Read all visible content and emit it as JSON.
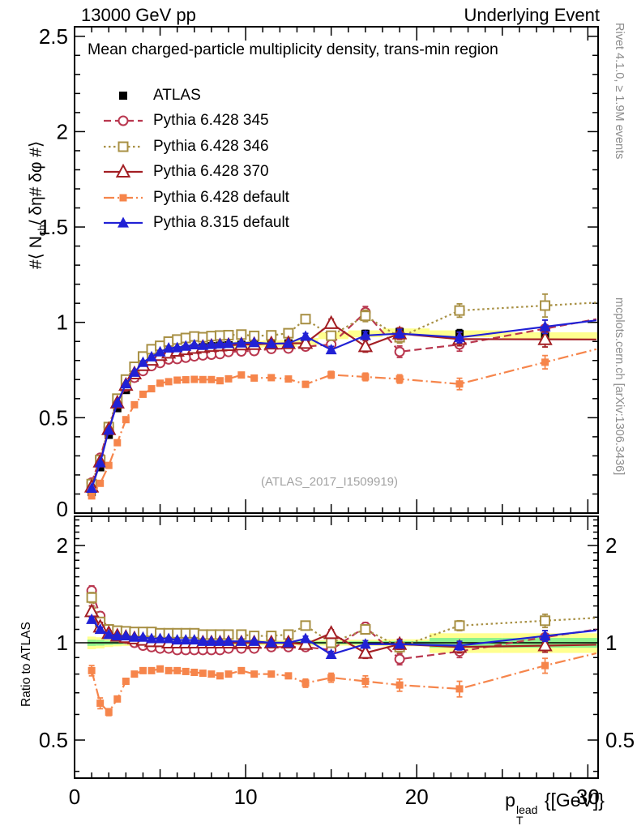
{
  "header": {
    "left": "13000 GeV pp",
    "right": "Underlying Event"
  },
  "plot_title": "Mean charged-particle multiplicity density, trans-min region",
  "watermark": "(ATLAS_2017_I1509919)",
  "side_notes": {
    "top_right": "Rivet 4.1.0, ≥ 1.9M events",
    "bottom_right": "mcplots.cern.ch [arXiv:1306.3436]"
  },
  "axes": {
    "y_main_label": {
      "prefix": "#⟨ N",
      "sub": "ch",
      "suffix": "/ δη# δφ #⟩"
    },
    "ratio_label": "Ratio to ATLAS",
    "x_label": {
      "base": "p",
      "sup": "lead",
      "sub": "T",
      "suffix": " {[GeV]}"
    },
    "x_ticks": {
      "vals": [
        0,
        10,
        20,
        30
      ],
      "labels": [
        "0",
        "10",
        "20",
        "30"
      ]
    },
    "y_main_ticks": {
      "vals": [
        0,
        0.5,
        1,
        1.5,
        2,
        2.5
      ],
      "labels": [
        "0",
        "0.5",
        "1",
        "1.5",
        "2",
        "2.5"
      ]
    },
    "ratio_ticks": {
      "vals": [
        0.5,
        1,
        2
      ],
      "labels": [
        "0.5",
        "1",
        "2"
      ]
    }
  },
  "chart_data": {
    "type": "line",
    "title": "Mean charged-particle multiplicity density, trans-min region",
    "xlabel": "pT^lead [GeV]",
    "ylabel": "<Nch / deta dphi>",
    "ratio_ylabel": "Ratio to ATLAS",
    "xlim": [
      0,
      30.6
    ],
    "ylim_main": [
      0,
      2.55
    ],
    "ylim_ratio": [
      0.38,
      2.46
    ],
    "ratio_scale": "log",
    "legend_position": "top-left",
    "grid": false,
    "x": [
      1,
      1.5,
      2,
      2.5,
      3,
      3.5,
      4,
      4.5,
      5,
      5.5,
      6,
      6.5,
      7,
      7.5,
      8,
      8.5,
      9,
      9.75,
      10.5,
      11.5,
      12.5,
      13.5,
      15,
      17,
      19,
      22.5,
      27.5
    ],
    "band_colors": {
      "yellow": "#ffff8f",
      "green": "#8df28d"
    },
    "atlas_band_half": 0.018,
    "ratio_band": {
      "yellow_half": [
        0.045,
        0.04,
        0.03,
        0.025,
        0.022,
        0.02,
        0.018,
        0.018,
        0.018,
        0.018,
        0.018,
        0.018,
        0.018,
        0.018,
        0.018,
        0.018,
        0.018,
        0.018,
        0.018,
        0.018,
        0.018,
        0.02,
        0.02,
        0.022,
        0.025,
        0.07,
        0.07
      ],
      "green_half": [
        0.022,
        0.02,
        0.015,
        0.012,
        0.011,
        0.01,
        0.009,
        0.009,
        0.009,
        0.009,
        0.009,
        0.009,
        0.009,
        0.009,
        0.009,
        0.009,
        0.009,
        0.009,
        0.009,
        0.009,
        0.009,
        0.01,
        0.01,
        0.011,
        0.012,
        0.035,
        0.035
      ]
    },
    "series": [
      {
        "name": "ATLAS",
        "color": "#000000",
        "line": "none",
        "marker": "square-filled",
        "msize": 10,
        "values": [
          0.11,
          0.24,
          0.41,
          0.55,
          0.645,
          0.71,
          0.76,
          0.795,
          0.82,
          0.84,
          0.85,
          0.858,
          0.865,
          0.87,
          0.875,
          0.878,
          0.88,
          0.883,
          0.885,
          0.888,
          0.89,
          0.9,
          0.93,
          0.94,
          0.95,
          0.94,
          0.93
        ],
        "err": [
          0.006,
          0.007,
          0.008,
          0.008,
          0.008,
          0.008,
          0.008,
          0.008,
          0.008,
          0.008,
          0.008,
          0.008,
          0.008,
          0.008,
          0.008,
          0.008,
          0.008,
          0.009,
          0.009,
          0.009,
          0.01,
          0.012,
          0.015,
          0.018,
          0.02,
          0.022,
          0.028
        ],
        "ratio": null,
        "ratio_err": null
      },
      {
        "name": "Pythia 6.428 345",
        "color": "#b9374f",
        "line": "dashed",
        "marker": "circle-open",
        "msize": 11,
        "values": [
          0.16,
          0.29,
          0.451,
          0.578,
          0.664,
          0.71,
          0.745,
          0.771,
          0.787,
          0.806,
          0.808,
          0.815,
          0.822,
          0.827,
          0.831,
          0.834,
          0.845,
          0.848,
          0.85,
          0.861,
          0.863,
          0.873,
          0.884,
          1.053,
          0.846,
          0.884,
          0.967
        ],
        "err": [
          0.008,
          0.008,
          0.008,
          0.008,
          0.008,
          0.008,
          0.008,
          0.008,
          0.008,
          0.008,
          0.008,
          0.008,
          0.008,
          0.008,
          0.008,
          0.008,
          0.008,
          0.009,
          0.009,
          0.01,
          0.012,
          0.02,
          0.022,
          0.03,
          0.03,
          0.035,
          0.045
        ],
        "ratio": [
          1.45,
          1.21,
          1.1,
          1.05,
          1.03,
          1,
          0.98,
          0.97,
          0.96,
          0.96,
          0.95,
          0.95,
          0.95,
          0.95,
          0.95,
          0.95,
          0.96,
          0.96,
          0.96,
          0.97,
          0.97,
          0.97,
          0.95,
          1.12,
          0.89,
          0.94,
          1.04
        ],
        "ratio_err": [
          0.05,
          0.035,
          0.02,
          0.015,
          0.012,
          0.01,
          0.01,
          0.01,
          0.01,
          0.01,
          0.01,
          0.01,
          0.01,
          0.01,
          0.01,
          0.01,
          0.01,
          0.012,
          0.012,
          0.014,
          0.016,
          0.025,
          0.027,
          0.035,
          0.035,
          0.04,
          0.05
        ]
      },
      {
        "name": "Pythia 6.428 346",
        "color": "#a89044",
        "line": "dotted",
        "marker": "square-open",
        "msize": 11,
        "values": [
          0.152,
          0.278,
          0.451,
          0.6,
          0.7,
          0.767,
          0.821,
          0.859,
          0.877,
          0.899,
          0.91,
          0.918,
          0.926,
          0.922,
          0.928,
          0.931,
          0.933,
          0.936,
          0.929,
          0.932,
          0.943,
          1.017,
          0.93,
          1.034,
          0.922,
          1.062,
          1.088
        ],
        "err": [
          0.008,
          0.008,
          0.008,
          0.008,
          0.008,
          0.008,
          0.008,
          0.008,
          0.008,
          0.008,
          0.008,
          0.008,
          0.008,
          0.008,
          0.008,
          0.008,
          0.008,
          0.009,
          0.009,
          0.01,
          0.012,
          0.02,
          0.022,
          0.03,
          0.03,
          0.035,
          0.06
        ],
        "ratio": [
          1.38,
          1.16,
          1.1,
          1.09,
          1.085,
          1.08,
          1.08,
          1.08,
          1.07,
          1.07,
          1.07,
          1.07,
          1.07,
          1.06,
          1.06,
          1.06,
          1.06,
          1.06,
          1.05,
          1.05,
          1.06,
          1.13,
          1,
          1.1,
          0.97,
          1.13,
          1.17
        ],
        "ratio_err": [
          0.05,
          0.035,
          0.02,
          0.015,
          0.012,
          0.01,
          0.01,
          0.01,
          0.01,
          0.01,
          0.01,
          0.01,
          0.01,
          0.01,
          0.01,
          0.01,
          0.01,
          0.012,
          0.012,
          0.014,
          0.016,
          0.025,
          0.027,
          0.035,
          0.035,
          0.04,
          0.055
        ]
      },
      {
        "name": "Pythia 6.428 370",
        "color": "#a31f24",
        "line": "solid",
        "marker": "triangle-open",
        "msize": 13,
        "values": [
          0.138,
          0.269,
          0.439,
          0.578,
          0.671,
          0.731,
          0.775,
          0.803,
          0.828,
          0.84,
          0.85,
          0.858,
          0.865,
          0.87,
          0.875,
          0.878,
          0.88,
          0.883,
          0.885,
          0.888,
          0.89,
          0.891,
          0.995,
          0.874,
          0.941,
          0.912,
          0.911
        ],
        "err": [
          0.008,
          0.008,
          0.008,
          0.008,
          0.008,
          0.008,
          0.008,
          0.008,
          0.008,
          0.008,
          0.008,
          0.008,
          0.008,
          0.008,
          0.008,
          0.008,
          0.008,
          0.009,
          0.009,
          0.01,
          0.012,
          0.02,
          0.022,
          0.03,
          0.03,
          0.035,
          0.04
        ],
        "ratio": [
          1.25,
          1.12,
          1.07,
          1.05,
          1.04,
          1.03,
          1.02,
          1.01,
          1.01,
          1,
          1,
          1,
          1,
          1,
          1,
          1,
          1,
          1,
          1,
          1,
          1,
          0.99,
          1.07,
          0.93,
          0.99,
          0.97,
          0.98
        ],
        "ratio_err": [
          0.05,
          0.035,
          0.02,
          0.015,
          0.012,
          0.01,
          0.01,
          0.01,
          0.01,
          0.01,
          0.01,
          0.01,
          0.01,
          0.01,
          0.01,
          0.01,
          0.01,
          0.012,
          0.012,
          0.014,
          0.016,
          0.025,
          0.027,
          0.035,
          0.035,
          0.04,
          0.045
        ]
      },
      {
        "name": "Pythia 6.428 default",
        "color": "#f6854b",
        "line": "dashdot",
        "marker": "square-filled",
        "msize": 9,
        "values": [
          0.09,
          0.156,
          0.25,
          0.369,
          0.49,
          0.568,
          0.623,
          0.652,
          0.681,
          0.689,
          0.697,
          0.699,
          0.701,
          0.7,
          0.7,
          0.694,
          0.704,
          0.724,
          0.708,
          0.71,
          0.703,
          0.675,
          0.725,
          0.714,
          0.703,
          0.677,
          0.791
        ],
        "err": [
          0.006,
          0.006,
          0.006,
          0.006,
          0.006,
          0.006,
          0.006,
          0.006,
          0.006,
          0.006,
          0.006,
          0.006,
          0.006,
          0.006,
          0.006,
          0.006,
          0.006,
          0.008,
          0.008,
          0.009,
          0.01,
          0.015,
          0.018,
          0.02,
          0.022,
          0.03,
          0.035
        ],
        "ratio": [
          0.82,
          0.65,
          0.61,
          0.67,
          0.76,
          0.8,
          0.82,
          0.82,
          0.83,
          0.82,
          0.82,
          0.815,
          0.81,
          0.805,
          0.8,
          0.79,
          0.8,
          0.82,
          0.8,
          0.8,
          0.79,
          0.75,
          0.78,
          0.76,
          0.74,
          0.72,
          0.85
        ],
        "ratio_err": [
          0.03,
          0.025,
          0.015,
          0.012,
          0.012,
          0.01,
          0.01,
          0.01,
          0.01,
          0.01,
          0.01,
          0.01,
          0.01,
          0.01,
          0.01,
          0.01,
          0.01,
          0.012,
          0.012,
          0.013,
          0.015,
          0.022,
          0.025,
          0.03,
          0.032,
          0.04,
          0.045
        ]
      },
      {
        "name": "Pythia 8.315 default",
        "color": "#2121d5",
        "line": "solid",
        "marker": "triangle-filled",
        "msize": 12,
        "values": [
          0.13,
          0.264,
          0.435,
          0.578,
          0.677,
          0.738,
          0.79,
          0.819,
          0.845,
          0.865,
          0.867,
          0.875,
          0.882,
          0.879,
          0.884,
          0.887,
          0.889,
          0.892,
          0.894,
          0.888,
          0.89,
          0.927,
          0.856,
          0.931,
          0.941,
          0.921,
          0.977
        ],
        "err": [
          0.005,
          0.005,
          0.005,
          0.005,
          0.005,
          0.005,
          0.005,
          0.005,
          0.005,
          0.005,
          0.005,
          0.005,
          0.005,
          0.005,
          0.005,
          0.005,
          0.005,
          0.006,
          0.006,
          0.007,
          0.008,
          0.015,
          0.018,
          0.02,
          0.022,
          0.028,
          0.035
        ],
        "ratio": [
          1.18,
          1.1,
          1.06,
          1.05,
          1.05,
          1.04,
          1.04,
          1.03,
          1.03,
          1.03,
          1.02,
          1.02,
          1.02,
          1.01,
          1.01,
          1.01,
          1.01,
          1.01,
          1.01,
          1,
          1,
          1.03,
          0.92,
          0.99,
          0.99,
          0.98,
          1.05
        ],
        "ratio_err": [
          0.02,
          0.015,
          0.01,
          0.008,
          0.008,
          0.008,
          0.008,
          0.008,
          0.008,
          0.008,
          0.008,
          0.008,
          0.008,
          0.008,
          0.008,
          0.008,
          0.008,
          0.009,
          0.009,
          0.01,
          0.012,
          0.018,
          0.02,
          0.025,
          0.025,
          0.03,
          0.04
        ]
      }
    ]
  }
}
